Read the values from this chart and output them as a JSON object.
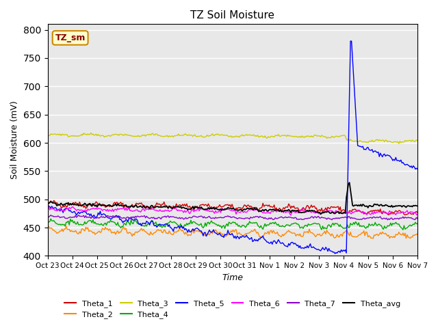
{
  "title": "TZ Soil Moisture",
  "ylabel": "Soil Moisture (mV)",
  "xlabel": "Time",
  "ylim": [
    400,
    810
  ],
  "bg_color": "#e8e8e8",
  "grid_color": "white",
  "legend_entries": [
    "Theta_1",
    "Theta_2",
    "Theta_3",
    "Theta_4",
    "Theta_5",
    "Theta_6",
    "Theta_7",
    "Theta_avg"
  ],
  "legend_colors": [
    "#cc0000",
    "#ff8800",
    "#cccc00",
    "#00aa00",
    "#0000ff",
    "#ff00ff",
    "#8800cc",
    "#000000"
  ],
  "series_colors": {
    "Theta_1": "#cc0000",
    "Theta_2": "#ff8800",
    "Theta_3": "#cccc00",
    "Theta_4": "#00aa00",
    "Theta_5": "#0000ff",
    "Theta_6": "#ff00ff",
    "Theta_7": "#8800cc",
    "Theta_avg": "#000000"
  },
  "box_label": "TZ_sm",
  "box_bg": "#ffffcc",
  "box_border": "#cc8800",
  "box_text_color": "#880000",
  "n_points": 360,
  "rain_event_index": 290,
  "x_tick_labels": [
    "Oct 23",
    "Oct 24",
    "Oct 25",
    "Oct 26",
    "Oct 27",
    "Oct 28",
    "Oct 29",
    "Oct 30",
    "Oct 31",
    "Nov 1",
    "Nov 2",
    "Nov 3",
    "Nov 4",
    "Nov 5",
    "Nov 6",
    "Nov 7"
  ],
  "n_days": 15
}
